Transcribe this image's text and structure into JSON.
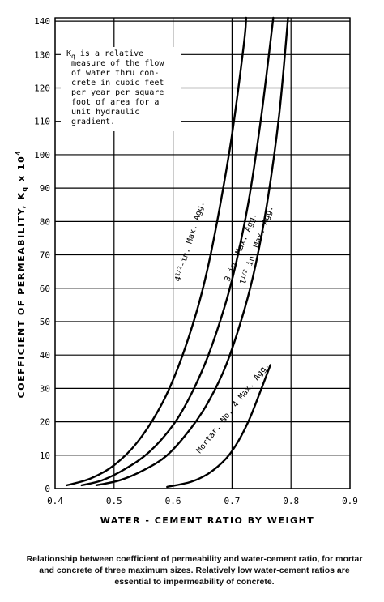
{
  "chart_data": {
    "type": "line",
    "xlabel": "WATER - CEMENT RATIO BY WEIGHT",
    "ylabel_main": "COEFFICIENT OF PERMEABILITY, K",
    "ylabel_sub": "q",
    "ylabel_tail": " x 10",
    "ylabel_sup": "4",
    "xlim": [
      0.4,
      0.9
    ],
    "ylim": [
      0,
      140
    ],
    "x_ticks": [
      "0.4",
      "0.5",
      "0.6",
      "0.7",
      "0.8",
      "0.9"
    ],
    "y_ticks": [
      "0",
      "10",
      "20",
      "30",
      "40",
      "50",
      "60",
      "70",
      "80",
      "90",
      "100",
      "110",
      "120",
      "130",
      "140"
    ],
    "grid": true,
    "series": [
      {
        "name": "4 1/2-in. Max. Agg.",
        "x": [
          0.42,
          0.46,
          0.5,
          0.54,
          0.58,
          0.61,
          0.64,
          0.66,
          0.68,
          0.7,
          0.72,
          0.724
        ],
        "y": [
          1,
          3,
          7,
          14,
          25,
          37,
          53,
          67,
          85,
          106,
          133,
          141
        ]
      },
      {
        "name": "3 in. Max. Agg.",
        "x": [
          0.445,
          0.48,
          0.52,
          0.56,
          0.6,
          0.63,
          0.66,
          0.69,
          0.71,
          0.73,
          0.75,
          0.77
        ],
        "y": [
          1,
          2.5,
          6,
          11,
          19,
          28,
          40,
          56,
          70,
          88,
          112,
          141
        ]
      },
      {
        "name": "1 1/2 in. Max. Agg.",
        "x": [
          0.47,
          0.51,
          0.55,
          0.59,
          0.63,
          0.66,
          0.69,
          0.72,
          0.74,
          0.76,
          0.78,
          0.795
        ],
        "y": [
          1,
          2.5,
          5.5,
          10,
          18,
          26,
          37,
          53,
          67,
          86,
          112,
          141
        ]
      },
      {
        "name": "Mortar, No. 4 Max. Agg.",
        "x": [
          0.59,
          0.63,
          0.66,
          0.69,
          0.71,
          0.73,
          0.75,
          0.765
        ],
        "y": [
          0.5,
          2,
          4.5,
          9,
          14,
          21,
          30,
          37
        ]
      }
    ]
  },
  "curve_labels": {
    "s1_a": "4",
    "s1_b": "1/2",
    "s1_c": "-in. Max. Agg.",
    "s2": "3 in. Max. Agg.",
    "s3_a": "1",
    "s3_b": "1/2",
    "s3_c": " in. Max. Agg.",
    "s4": "Mortar, No. 4 Max. Agg."
  },
  "note": {
    "k": "K",
    "k_sub": "q",
    "line1_rest": " is a relative",
    "line2": "measure of the flow",
    "line3": "of water thru con-",
    "line4": "crete in cubic feet",
    "line5": "per year per square",
    "line6": "foot of area for a",
    "line7": "unit hydraulic",
    "line8": "gradient."
  },
  "caption": "Relationship between coefficient of permeability and water-cement ratio, for mortar and concrete of three maximum sizes. Relatively low water-cement ratios are essential to impermeability of concrete."
}
